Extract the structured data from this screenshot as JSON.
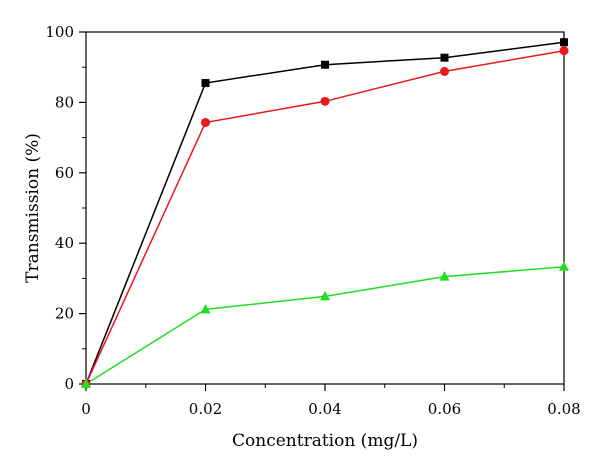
{
  "chart_data": {
    "type": "line",
    "xlabel": "Concentration (mg/L)",
    "ylabel": "Transmission (%)",
    "xlim": [
      0,
      0.08
    ],
    "ylim": [
      0,
      100
    ],
    "x_ticks": [
      0,
      0.02,
      0.04,
      0.06,
      0.08
    ],
    "x_tick_labels": [
      "0",
      "0.02",
      "0.04",
      "0.06",
      "0.08"
    ],
    "y_ticks": [
      0,
      20,
      40,
      60,
      80,
      100
    ],
    "y_tick_labels": [
      "0",
      "20",
      "40",
      "60",
      "80",
      "100"
    ],
    "grid": false,
    "legend": "none",
    "x": [
      0,
      0.02,
      0.04,
      0.06,
      0.08
    ],
    "series": [
      {
        "values": [
          0,
          85.5,
          90.7,
          92.7,
          97.1
        ],
        "color": "#000000",
        "marker": "square"
      },
      {
        "values": [
          0,
          74.3,
          80.3,
          88.8,
          94.7
        ],
        "color": "#e8191c",
        "marker": "circle"
      },
      {
        "values": [
          0,
          21.2,
          24.9,
          30.5,
          33.3
        ],
        "color": "#22dd22",
        "marker": "triangle"
      }
    ]
  }
}
